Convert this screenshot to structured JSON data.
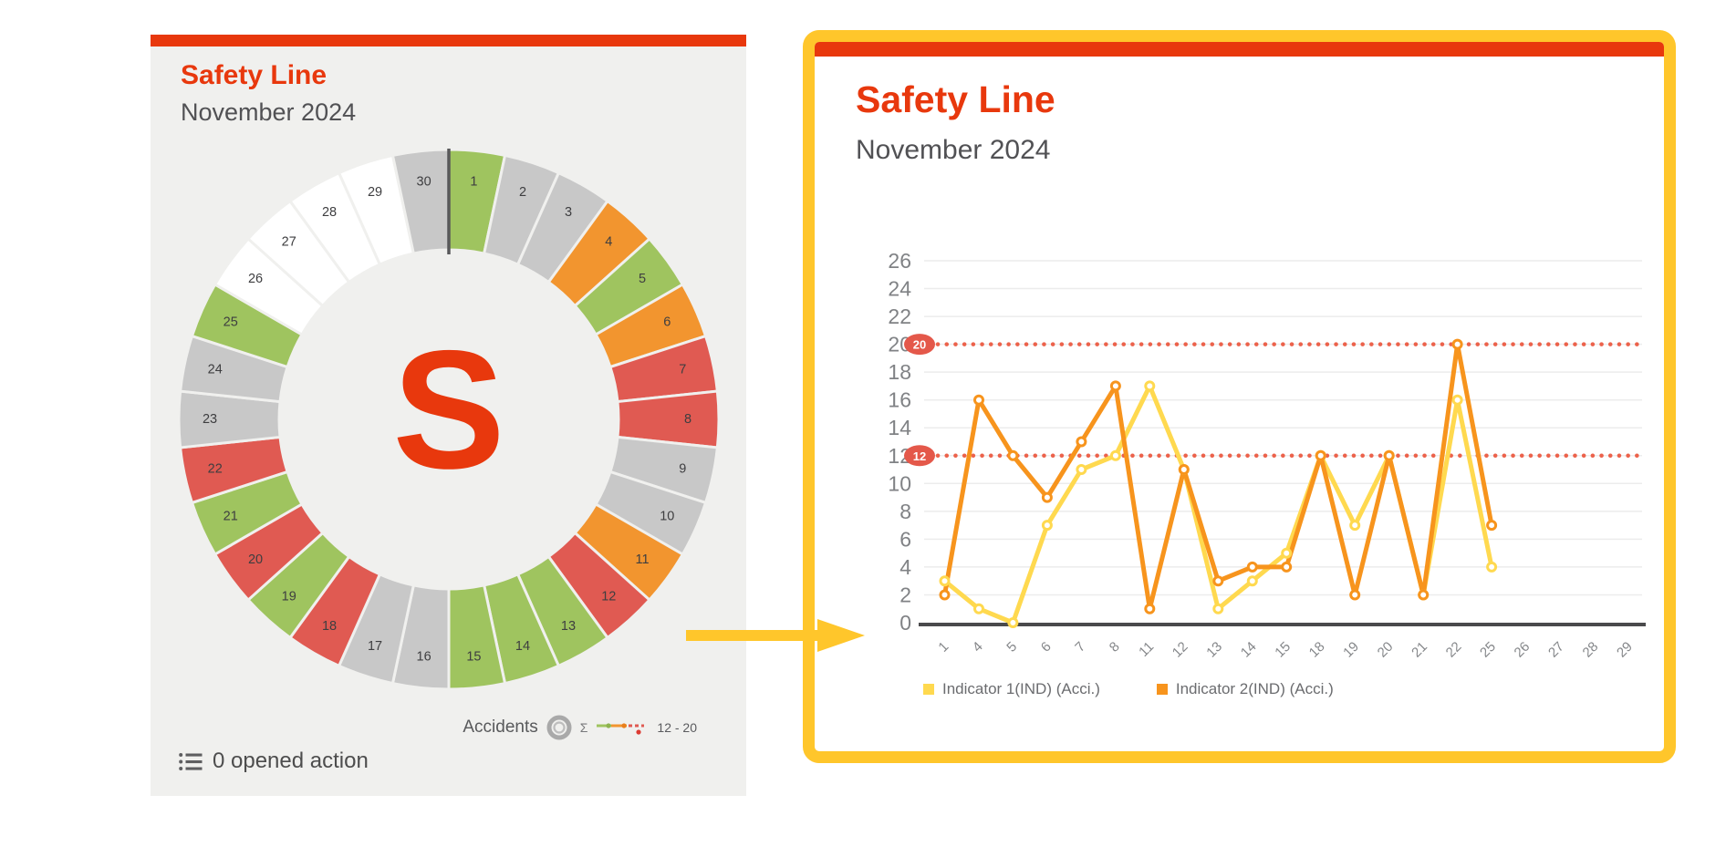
{
  "left_card": {
    "title": "Safety Line",
    "subtitle": "November 2024",
    "accent_color": "#E8380D",
    "background": "#F0F0EE",
    "center_letter": "S",
    "gauge_legend": {
      "label": "Accidents",
      "sigma": "Σ",
      "range": "12 - 20"
    },
    "actions_label": "0 opened action"
  },
  "right_card": {
    "title": "Safety Line",
    "subtitle": "November 2024",
    "accent_color": "#E8380D",
    "border_color": "#FFC62B",
    "legend": [
      {
        "label": "Indicator 1(IND) (Acci.)",
        "color": "#FFD94F"
      },
      {
        "label": "Indicator 2(IND) (Acci.)",
        "color": "#F7941D"
      }
    ]
  },
  "chart_data": [
    {
      "type": "donut-calendar",
      "title": "Safety Line",
      "subtitle": "November 2024",
      "center_label": "S",
      "palette": {
        "green": "#9FC45F",
        "orange": "#F2952F",
        "red": "#E05A52",
        "gray": "#C8C8C8",
        "white": "#FFFFFF"
      },
      "days": [
        {
          "day": 1,
          "status": "green"
        },
        {
          "day": 2,
          "status": "gray"
        },
        {
          "day": 3,
          "status": "gray"
        },
        {
          "day": 4,
          "status": "orange"
        },
        {
          "day": 5,
          "status": "green"
        },
        {
          "day": 6,
          "status": "orange"
        },
        {
          "day": 7,
          "status": "red"
        },
        {
          "day": 8,
          "status": "red"
        },
        {
          "day": 9,
          "status": "gray"
        },
        {
          "day": 10,
          "status": "gray"
        },
        {
          "day": 11,
          "status": "orange"
        },
        {
          "day": 12,
          "status": "red"
        },
        {
          "day": 13,
          "status": "green"
        },
        {
          "day": 14,
          "status": "green"
        },
        {
          "day": 15,
          "status": "green"
        },
        {
          "day": 16,
          "status": "gray"
        },
        {
          "day": 17,
          "status": "gray"
        },
        {
          "day": 18,
          "status": "red"
        },
        {
          "day": 19,
          "status": "green"
        },
        {
          "day": 20,
          "status": "red"
        },
        {
          "day": 21,
          "status": "green"
        },
        {
          "day": 22,
          "status": "red"
        },
        {
          "day": 23,
          "status": "gray"
        },
        {
          "day": 24,
          "status": "gray"
        },
        {
          "day": 25,
          "status": "green"
        },
        {
          "day": 26,
          "status": "white"
        },
        {
          "day": 27,
          "status": "white"
        },
        {
          "day": 28,
          "status": "white"
        },
        {
          "day": 29,
          "status": "white"
        },
        {
          "day": 30,
          "status": "gray"
        }
      ]
    },
    {
      "type": "line",
      "title": "Safety Line",
      "subtitle": "November 2024",
      "categories": [
        "1",
        "4",
        "5",
        "6",
        "7",
        "8",
        "11",
        "12",
        "13",
        "14",
        "15",
        "18",
        "19",
        "20",
        "21",
        "22",
        "25",
        "26",
        "27",
        "28",
        "29"
      ],
      "series": [
        {
          "name": "Indicator 1(IND) (Acci.)",
          "color": "#FFD94F",
          "values": [
            3,
            1,
            0,
            7,
            11,
            12,
            17,
            11,
            1,
            3,
            5,
            12,
            7,
            12,
            2,
            16,
            4,
            null,
            null,
            null,
            null
          ]
        },
        {
          "name": "Indicator 2(IND) (Acci.)",
          "color": "#F7941D",
          "values": [
            2,
            16,
            12,
            9,
            13,
            17,
            1,
            11,
            3,
            4,
            4,
            12,
            2,
            12,
            2,
            20,
            7,
            null,
            null,
            null,
            null
          ]
        }
      ],
      "thresholds": [
        {
          "value": 20,
          "label": "20"
        },
        {
          "value": 12,
          "label": "12"
        }
      ],
      "threshold_color": "#EC624B",
      "badge_color": "#E4584A",
      "ylim": [
        0,
        26
      ],
      "ytick_step": 2,
      "grid": true,
      "legend_position": "bottom"
    }
  ]
}
